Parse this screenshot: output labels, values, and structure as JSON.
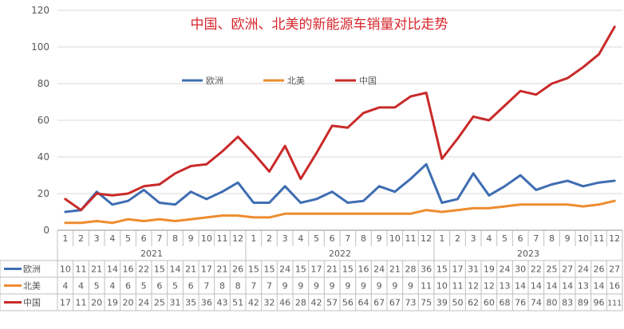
{
  "chart_data": {
    "type": "line",
    "title": "中国、欧洲、北美的新能源车销量对比走势",
    "colors": {
      "title": "#d6262c",
      "europe": "#3f6db2",
      "north_america": "#ed8c2f",
      "china": "#c92a2a",
      "axis_text": "#595959",
      "grid": "#d9d9d9"
    },
    "y_ticks": [
      "0",
      "20",
      "40",
      "60",
      "80",
      "100",
      "120"
    ],
    "ylim": [
      0,
      120
    ],
    "months": [
      "1",
      "2",
      "3",
      "4",
      "5",
      "6",
      "7",
      "8",
      "9",
      "10",
      "11",
      "12",
      "1",
      "2",
      "3",
      "4",
      "5",
      "6",
      "7",
      "8",
      "9",
      "10",
      "11",
      "12",
      "1",
      "2",
      "3",
      "4",
      "5",
      "6",
      "7",
      "8",
      "9",
      "10",
      "11",
      "12"
    ],
    "years": [
      "2021",
      "2022",
      "2023"
    ],
    "legend_position": "top-center",
    "series": [
      {
        "name": "欧洲",
        "color": "#3f6db2",
        "values": [
          10,
          11,
          21,
          14,
          16,
          22,
          15,
          14,
          21,
          17,
          21,
          26,
          15,
          15,
          24,
          15,
          17,
          21,
          15,
          16,
          24,
          21,
          28,
          36,
          15,
          17,
          31,
          19,
          24,
          30,
          22,
          25,
          27,
          24,
          26,
          27
        ],
        "labels": [
          "10",
          "11",
          "21",
          "14",
          "16",
          "22",
          "15",
          "14",
          "21",
          "17",
          "21",
          "26",
          "15",
          "15",
          "24",
          "15",
          "17",
          "21",
          "15",
          "16",
          "24",
          "21",
          "28",
          "36",
          "15",
          "17",
          "31",
          "19",
          "24",
          "30",
          "22",
          "25",
          "27",
          "24",
          "26",
          "27"
        ]
      },
      {
        "name": "北美",
        "color": "#ed8c2f",
        "values": [
          4,
          4,
          5,
          4,
          6,
          5,
          6,
          5,
          6,
          7,
          8,
          8,
          7,
          7,
          9,
          9,
          9,
          9,
          9,
          9,
          9,
          9,
          9,
          11,
          10,
          11,
          12,
          12,
          13,
          14,
          14,
          14,
          14,
          13,
          14,
          16
        ],
        "labels": [
          "4",
          "4",
          "5",
          "4",
          "6",
          "5",
          "6",
          "5",
          "6",
          "7",
          "8",
          "8",
          "7",
          "7",
          "9",
          "9",
          "9",
          "9",
          "9",
          "9",
          "9",
          "9",
          "9",
          "11",
          "10",
          "11",
          "12",
          "12",
          "13",
          "14",
          "14",
          "14",
          "14",
          "13",
          "14",
          "16"
        ]
      },
      {
        "name": "中国",
        "color": "#c92a2a",
        "values": [
          17,
          11,
          20,
          19,
          20,
          24,
          25,
          31,
          35,
          36,
          43,
          51,
          42,
          32,
          46,
          28,
          42,
          57,
          56,
          64,
          67,
          67,
          73,
          75,
          39,
          50,
          62,
          60,
          68,
          76,
          74,
          80,
          83,
          89,
          96,
          111
        ],
        "labels": [
          "17",
          "11",
          "20",
          "19",
          "20",
          "24",
          "25",
          "31",
          "35",
          "36",
          "43",
          "51",
          "42",
          "32",
          "46",
          "28",
          "42",
          "57",
          "56",
          "64",
          "67",
          "67",
          "73",
          "75",
          "39",
          "50",
          "62",
          "60",
          "68",
          "76",
          "74",
          "80",
          "83",
          "89",
          "96",
          "111"
        ]
      }
    ]
  }
}
